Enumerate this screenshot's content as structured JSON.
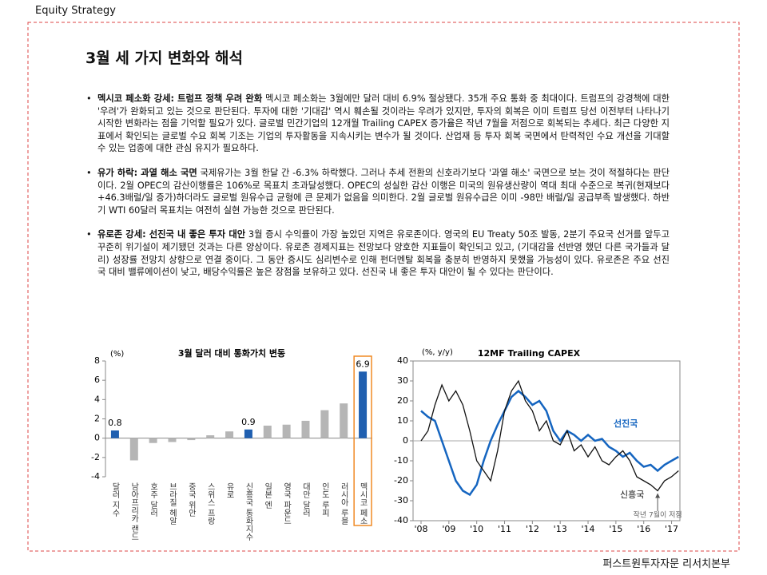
{
  "header": {
    "section": "Equity Strategy",
    "title": "3월 세 가지 변화와 해석",
    "footer": "퍼스트원투자자문 리서치본부"
  },
  "bullets": [
    {
      "head": "멕시코 페소화 강세: 트럼프 정책 우려 완화",
      "body": "멕시코 페소화는 3월에만 달러 대비 6.9% 절상됐다. 35개 주요 통화 중 최대이다. 트럼프의 강경책에 대한 '우려'가 완화되고 있는 것으로 판단된다. 투자에 대한 '기대감' 역시 훼손될 것이라는 우려가 있지만, 투자의 회복은 이미 트럼프 당선 이전부터 나타나기 시작한 변화라는 점을 기억할 필요가 있다. 글로벌 민간기업의 12개월 Trailing CAPEX 증가율은 작년 7월을 저점으로 회복되는 추세다. 최근 다양한 지표에서 확인되는 글로벌 수요 회복 기조는 기업의 투자활동을 지속시키는 변수가 될 것이다. 산업재 등 투자 회복 국면에서 탄력적인 수요 개선을 기대할 수 있는 업종에 대한 관심 유지가 필요하다."
    },
    {
      "head": "유가 하락: 과열 해소 국면",
      "body": "국제유가는 3월 한달 간 -6.3% 하락했다. 그러나 추세 전환의 신호라기보다 '과열 해소' 국면으로 보는 것이 적절하다는 판단이다. 2월 OPEC의 감산이행률은 106%로 목표치 초과달성했다. OPEC의 성실한 감산 이행은 미국의 원유생산량이 역대 최대 수준으로 복귀(현재보다 +46.3배럴/일 증가)하더라도 글로벌 원유수급 균형에 큰 문제가 없음을 의미한다. 2월 글로벌 원유수급은 이미 -98만 배럴/일 공급부족 발생했다. 하반기 WTI 60달러 목표치는 여전히 실현 가능한 것으로 판단된다."
    },
    {
      "head": "유로존 강세: 선진국 내 좋은 투자 대안",
      "body": "3월 증시 수익률이 가장 높았던 지역은 유로존이다. 영국의 EU Treaty 50조 발동, 2분기 주요국 선거를 앞두고 꾸준히 위기설이 제기됐던 것과는 다른 양상이다. 유로존 경제지표는 전망보다 양호한 지표들이 확인되고 있고, (기대감을 선반영 했던 다른 국가들과 달리) 성장률 전망치 상향으로 연결 중이다. 그 동안 증시도 심리변수로 인해 펀더멘탈 회복을 충분히 반영하지 못했을 가능성이 있다. 유로존은 주요 선진국 대비 밸류에이션이 낮고, 배당수익률은 높은 장점을 보유하고 있다. 선진국 내 좋은 투자 대안이 될 수 있다는 판단이다."
    }
  ],
  "charts": [
    {
      "type": "bar",
      "title": "3월 달러 대비 통화가치 변동",
      "unit": "(%)",
      "categories": [
        "달러 지수",
        "남아프리카 랜드",
        "호주 달러",
        "브라질 헤알",
        "중국 위안",
        "스위스 프랑",
        "유로",
        "신흥국 통화지수",
        "일본 엔",
        "영국 파운드",
        "대만 달러",
        "인도 루피",
        "러시아 루블",
        "멕시코 페소"
      ],
      "values": [
        0.8,
        -2.3,
        -0.5,
        -0.4,
        -0.2,
        0.3,
        0.7,
        0.9,
        1.3,
        1.4,
        1.8,
        2.9,
        3.6,
        6.9
      ],
      "value_labels": [
        0.8,
        null,
        null,
        null,
        null,
        null,
        null,
        0.9,
        null,
        null,
        null,
        null,
        null,
        6.9
      ],
      "colors": [
        "#1f5fb0",
        "#b5b5b5",
        "#b5b5b5",
        "#b5b5b5",
        "#b5b5b5",
        "#b5b5b5",
        "#b5b5b5",
        "#1f5fb0",
        "#b5b5b5",
        "#b5b5b5",
        "#b5b5b5",
        "#b5b5b5",
        "#b5b5b5",
        "#1f5fb0"
      ],
      "ylim": [
        -4,
        8
      ],
      "yticks": [
        -4,
        -2,
        0,
        2,
        4,
        6,
        8
      ]
    },
    {
      "type": "line",
      "title": "12MF Trailing CAPEX",
      "unit": "(%, y/y)",
      "x": [
        2008.0,
        2008.25,
        2008.5,
        2008.75,
        2009.0,
        2009.25,
        2009.5,
        2009.75,
        2010.0,
        2010.25,
        2010.5,
        2010.75,
        2011.0,
        2011.25,
        2011.5,
        2011.75,
        2012.0,
        2012.25,
        2012.5,
        2012.75,
        2013.0,
        2013.25,
        2013.5,
        2013.75,
        2014.0,
        2014.25,
        2014.5,
        2014.75,
        2015.0,
        2015.25,
        2015.5,
        2015.75,
        2016.0,
        2016.25,
        2016.5,
        2016.75,
        2017.0,
        2017.25
      ],
      "series": [
        {
          "name": "선진국",
          "color": "#1565c0",
          "values": [
            15,
            12,
            10,
            0,
            -10,
            -20,
            -25,
            -27,
            -22,
            -10,
            0,
            8,
            15,
            22,
            25,
            22,
            18,
            20,
            15,
            5,
            0,
            5,
            3,
            0,
            3,
            0,
            1,
            -3,
            -5,
            -8,
            -6,
            -10,
            -13,
            -12,
            -15,
            -12,
            -10,
            -8
          ]
        },
        {
          "name": "신흥국",
          "color": "#111111",
          "values": [
            0,
            5,
            18,
            28,
            20,
            25,
            18,
            5,
            -10,
            -15,
            -20,
            -5,
            15,
            25,
            30,
            20,
            15,
            5,
            10,
            0,
            -2,
            5,
            -5,
            -2,
            -8,
            -3,
            -10,
            -12,
            -8,
            -5,
            -10,
            -18,
            -20,
            -22,
            -25,
            -20,
            -18,
            -15
          ]
        }
      ],
      "annotation": {
        "text": "작년 7월이 저점",
        "x": 2016.5,
        "y": -25
      },
      "xlim": [
        2008,
        2017.3
      ],
      "xticks": [
        {
          "value": 2008,
          "label": "'08"
        },
        {
          "value": 2009,
          "label": "'09"
        },
        {
          "value": 2010,
          "label": "'10"
        },
        {
          "value": 2011,
          "label": "'11"
        },
        {
          "value": 2012,
          "label": "'12"
        },
        {
          "value": 2013,
          "label": "'13"
        },
        {
          "value": 2014,
          "label": "'14"
        },
        {
          "value": 2015,
          "label": "'15"
        },
        {
          "value": 2016,
          "label": "'16"
        },
        {
          "value": 2017,
          "label": "'17"
        }
      ],
      "ylim": [
        -40,
        40
      ],
      "yticks": [
        -40,
        -30,
        -20,
        -10,
        0,
        10,
        20,
        30,
        40
      ]
    }
  ]
}
